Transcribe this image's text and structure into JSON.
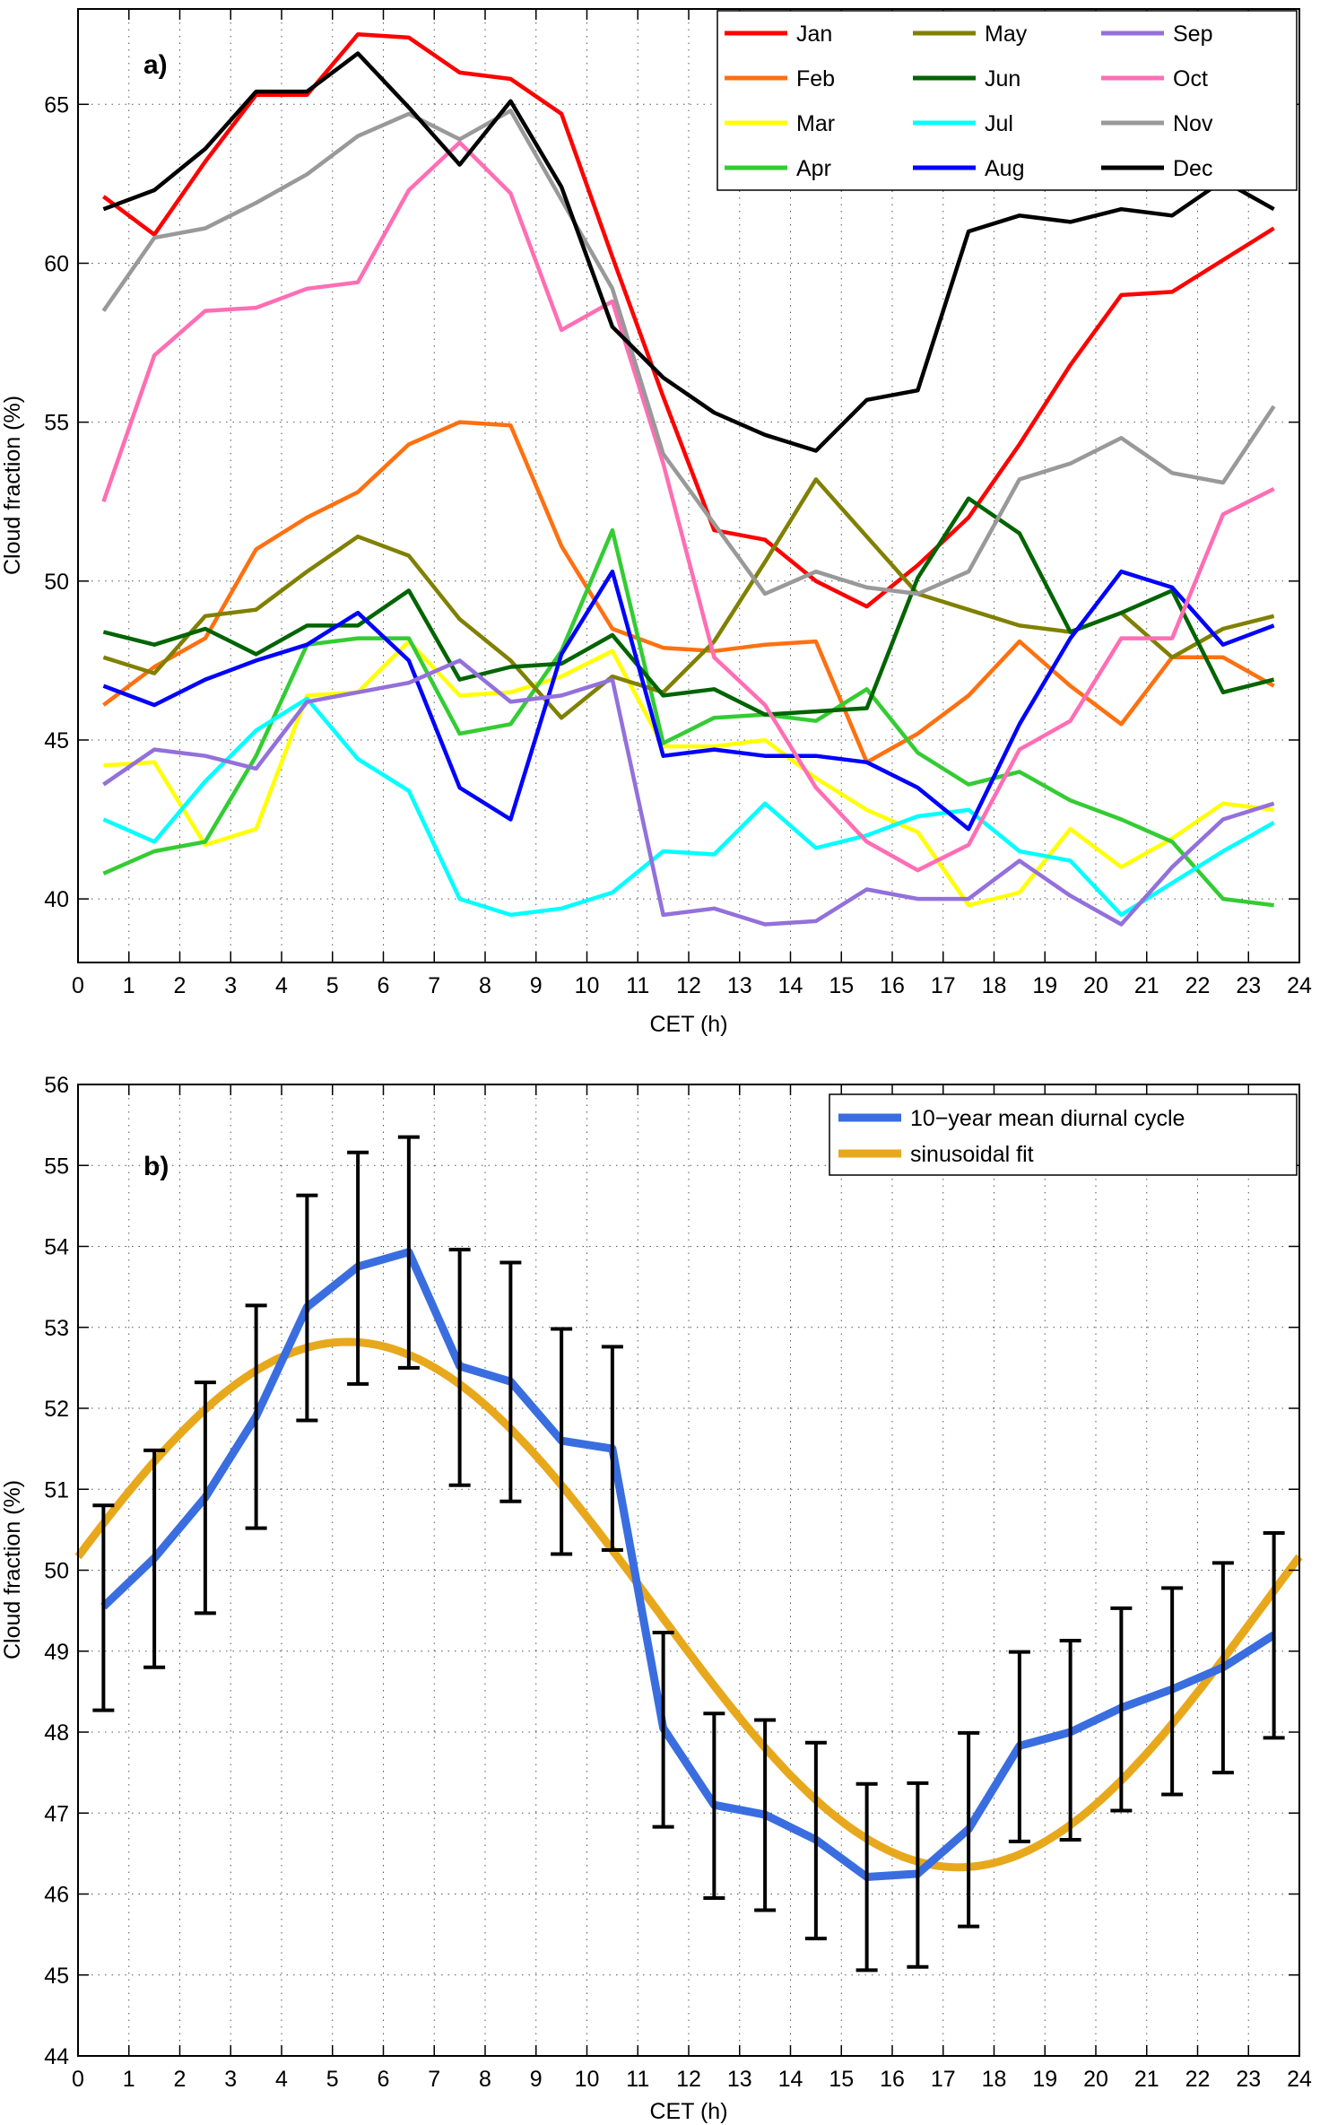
{
  "chart_data": [
    {
      "type": "line",
      "panel_label": "a)",
      "xlabel": "CET (h)",
      "ylabel": "Cloud fraction (%)",
      "xlim": [
        0,
        24
      ],
      "ylim": [
        38,
        68
      ],
      "xticks": [
        0,
        1,
        2,
        3,
        4,
        5,
        6,
        7,
        8,
        9,
        10,
        11,
        12,
        13,
        14,
        15,
        16,
        17,
        18,
        19,
        20,
        21,
        22,
        23,
        24
      ],
      "yticks": [
        40,
        45,
        50,
        55,
        60,
        65
      ],
      "grid": true,
      "legend_position": "top-right",
      "x": [
        0.5,
        1.5,
        2.5,
        3.5,
        4.5,
        5.5,
        6.5,
        7.5,
        8.5,
        9.5,
        10.5,
        11.5,
        12.5,
        13.5,
        14.5,
        15.5,
        16.5,
        17.5,
        18.5,
        19.5,
        20.5,
        21.5,
        22.5,
        23.5
      ],
      "series": [
        {
          "name": "Jan",
          "color": "#ff0000",
          "values": [
            62.1,
            60.9,
            63.2,
            65.3,
            65.3,
            67.2,
            67.1,
            66.0,
            65.8,
            64.7,
            60.2,
            55.8,
            51.6,
            51.3,
            50.0,
            49.2,
            50.5,
            52.0,
            54.3,
            56.8,
            59.0,
            59.1,
            60.1,
            61.1
          ]
        },
        {
          "name": "Feb",
          "color": "#ff7010",
          "values": [
            46.1,
            47.3,
            48.2,
            51.0,
            52.0,
            52.8,
            54.3,
            55.0,
            54.9,
            51.1,
            48.5,
            47.9,
            47.8,
            48.0,
            48.1,
            44.3,
            45.2,
            46.4,
            48.1,
            46.7,
            45.5,
            47.6,
            47.6,
            46.7
          ]
        },
        {
          "name": "Mar",
          "color": "#ffff00",
          "values": [
            44.2,
            44.3,
            41.7,
            42.2,
            46.4,
            46.5,
            48.1,
            46.4,
            46.5,
            47.0,
            47.8,
            44.8,
            44.8,
            45.0,
            43.8,
            42.8,
            42.1,
            39.8,
            40.2,
            42.2,
            41.0,
            41.9,
            43.0,
            42.8
          ]
        },
        {
          "name": "Apr",
          "color": "#33cc33",
          "values": [
            40.8,
            41.5,
            41.8,
            44.5,
            48.0,
            48.2,
            48.2,
            45.2,
            45.5,
            47.8,
            51.6,
            44.9,
            45.7,
            45.8,
            45.6,
            46.6,
            44.6,
            43.6,
            44.0,
            43.1,
            42.5,
            41.8,
            40.0,
            39.8
          ]
        },
        {
          "name": "May",
          "color": "#808000",
          "values": [
            47.6,
            47.1,
            48.9,
            49.1,
            50.3,
            51.4,
            50.8,
            48.8,
            47.5,
            45.7,
            47.0,
            46.5,
            48.1,
            50.6,
            53.2,
            51.4,
            49.6,
            49.1,
            48.6,
            48.4,
            49.0,
            47.6,
            48.5,
            48.9
          ]
        },
        {
          "name": "Jun",
          "color": "#006400",
          "values": [
            48.4,
            48.0,
            48.5,
            47.7,
            48.6,
            48.6,
            49.7,
            46.9,
            47.3,
            47.4,
            48.3,
            46.4,
            46.6,
            45.8,
            45.9,
            46.0,
            50.1,
            52.6,
            51.5,
            48.4,
            49.0,
            49.7,
            46.5,
            46.9
          ]
        },
        {
          "name": "Jul",
          "color": "#00ffff",
          "values": [
            42.5,
            41.8,
            43.7,
            45.3,
            46.3,
            44.4,
            43.4,
            40.0,
            39.5,
            39.7,
            40.2,
            41.5,
            41.4,
            43.0,
            41.6,
            42.0,
            42.6,
            42.8,
            41.5,
            41.2,
            39.5,
            40.5,
            41.5,
            42.4
          ]
        },
        {
          "name": "Aug",
          "color": "#0000ff",
          "values": [
            46.7,
            46.1,
            46.9,
            47.5,
            48.0,
            49.0,
            47.5,
            43.5,
            42.5,
            47.7,
            50.3,
            44.5,
            44.7,
            44.5,
            44.5,
            44.3,
            43.5,
            42.2,
            45.5,
            48.2,
            50.3,
            49.8,
            48.0,
            48.6
          ]
        },
        {
          "name": "Sep",
          "color": "#9370db",
          "values": [
            43.6,
            44.7,
            44.5,
            44.1,
            46.2,
            46.5,
            46.8,
            47.5,
            46.2,
            46.4,
            46.9,
            39.5,
            39.7,
            39.2,
            39.3,
            40.3,
            40.0,
            40.0,
            41.2,
            40.1,
            39.2,
            41.0,
            42.5,
            43.0
          ]
        },
        {
          "name": "Oct",
          "color": "#ff6eb4",
          "values": [
            52.5,
            57.1,
            58.5,
            58.6,
            59.2,
            59.4,
            62.3,
            63.8,
            62.2,
            57.9,
            58.8,
            53.7,
            47.6,
            46.1,
            43.5,
            41.8,
            40.9,
            41.7,
            44.7,
            45.6,
            48.2,
            48.2,
            52.1,
            52.9
          ]
        },
        {
          "name": "Nov",
          "color": "#999999",
          "values": [
            58.5,
            60.8,
            61.1,
            61.9,
            62.8,
            64.0,
            64.7,
            63.9,
            64.8,
            62.0,
            59.2,
            54.0,
            51.8,
            49.6,
            50.3,
            49.8,
            49.6,
            50.3,
            53.2,
            53.7,
            54.5,
            53.4,
            53.1,
            55.5
          ]
        },
        {
          "name": "Dec",
          "color": "#000000",
          "values": [
            61.7,
            62.3,
            63.6,
            65.4,
            65.4,
            66.6,
            64.9,
            63.1,
            65.1,
            62.4,
            58.0,
            56.4,
            55.3,
            54.6,
            54.1,
            55.7,
            56.0,
            61.0,
            61.5,
            61.3,
            61.7,
            61.5,
            62.6,
            61.7
          ]
        }
      ]
    },
    {
      "type": "line",
      "panel_label": "b)",
      "xlabel": "CET (h)",
      "ylabel": "Cloud fraction (%)",
      "xlim": [
        0,
        24
      ],
      "ylim": [
        44,
        56
      ],
      "xticks": [
        0,
        1,
        2,
        3,
        4,
        5,
        6,
        7,
        8,
        9,
        10,
        11,
        12,
        13,
        14,
        15,
        16,
        17,
        18,
        19,
        20,
        21,
        22,
        23,
        24
      ],
      "yticks": [
        44,
        45,
        46,
        47,
        48,
        49,
        50,
        51,
        52,
        53,
        54,
        55,
        56
      ],
      "grid": true,
      "legend_position": "top-right",
      "series": [
        {
          "name": "10−year mean diurnal cycle",
          "color": "#3a6ee0",
          "x": [
            0.5,
            1.5,
            2.5,
            3.5,
            4.5,
            5.5,
            6.5,
            7.5,
            8.5,
            9.5,
            10.5,
            11.5,
            12.5,
            13.5,
            14.5,
            15.5,
            16.5,
            17.5,
            18.5,
            19.5,
            20.5,
            21.5,
            22.5,
            23.5
          ],
          "values": [
            49.55,
            50.15,
            50.9,
            51.9,
            53.25,
            53.75,
            53.93,
            52.52,
            52.33,
            51.6,
            51.5,
            48.05,
            47.1,
            46.98,
            46.67,
            46.21,
            46.25,
            46.8,
            47.83,
            48.0,
            48.3,
            48.53,
            48.8,
            49.2
          ],
          "error_low": [
            48.27,
            48.8,
            49.47,
            50.52,
            51.85,
            52.3,
            52.5,
            51.05,
            50.85,
            50.2,
            50.25,
            46.83,
            45.95,
            45.8,
            45.45,
            45.06,
            45.1,
            45.6,
            46.65,
            46.67,
            47.03,
            47.23,
            47.5,
            47.93
          ],
          "error_high": [
            50.8,
            51.48,
            52.32,
            53.27,
            54.63,
            55.16,
            55.35,
            53.96,
            53.8,
            52.98,
            52.76,
            49.23,
            48.23,
            48.15,
            47.87,
            47.36,
            47.37,
            47.99,
            48.99,
            49.13,
            49.53,
            49.78,
            50.09,
            50.46
          ]
        },
        {
          "name": "sinusoidal fit",
          "color": "#e8a81c",
          "function": "mean + amplitude*cos(2*pi*(x - peak_hour)/24)",
          "mean": 49.575,
          "amplitude": 3.245,
          "peak_hour": 5.3,
          "x_range": [
            0,
            24
          ]
        }
      ]
    }
  ]
}
